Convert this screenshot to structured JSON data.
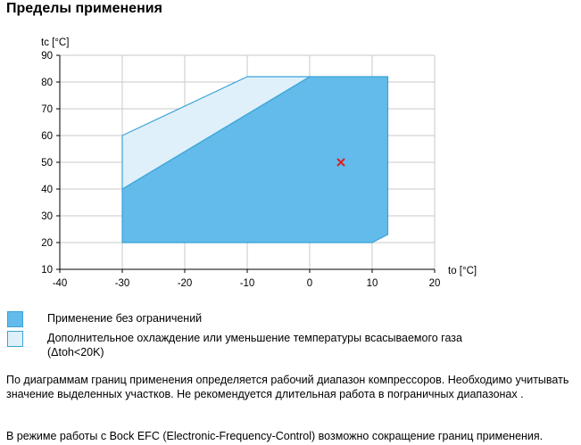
{
  "title": "Пределы применения",
  "chart_data": {
    "type": "area",
    "xlabel": "to [°C]",
    "ylabel": "tc [°C]",
    "xlim": [
      -40,
      20
    ],
    "ylim": [
      10,
      90
    ],
    "xticks": [
      -40,
      -30,
      -20,
      -10,
      0,
      10,
      20
    ],
    "yticks": [
      10,
      20,
      30,
      40,
      50,
      60,
      70,
      80,
      90
    ],
    "grid": true,
    "colors": {
      "unrestricted": "#62bbea",
      "additional": "#dff0fb",
      "border": "#3aa3d6",
      "marker": "#e11b22"
    },
    "regions": [
      {
        "name": "unrestricted",
        "points": [
          [
            -30,
            20
          ],
          [
            -30,
            40
          ],
          [
            0,
            82
          ],
          [
            12.5,
            82
          ],
          [
            12.5,
            23
          ],
          [
            10,
            20
          ]
        ]
      },
      {
        "name": "additional",
        "points": [
          [
            -30,
            40
          ],
          [
            -30,
            60
          ],
          [
            -10,
            82
          ],
          [
            0,
            82
          ]
        ]
      }
    ],
    "marker": {
      "x": 5,
      "y": 50
    }
  },
  "legend": {
    "items": [
      {
        "label": "Применение без ограничений",
        "color": "#62bbea"
      },
      {
        "label": "Дополнительное охлаждение или уменьшение температуры всасываемого газа",
        "label2": "(Δtoh<20K)",
        "color": "#dff0fb"
      }
    ]
  },
  "paragraph1": "По диаграммам границ применения определяется рабочий диапазон компрессоров. Необходимо учитывать значение выделенных участков. Не рекомендуется длительная работа в пограничных диапазонах .",
  "paragraph2": "В режиме работы с Bock EFC (Electronic-Frequency-Control) возможно сокращение границ применения."
}
